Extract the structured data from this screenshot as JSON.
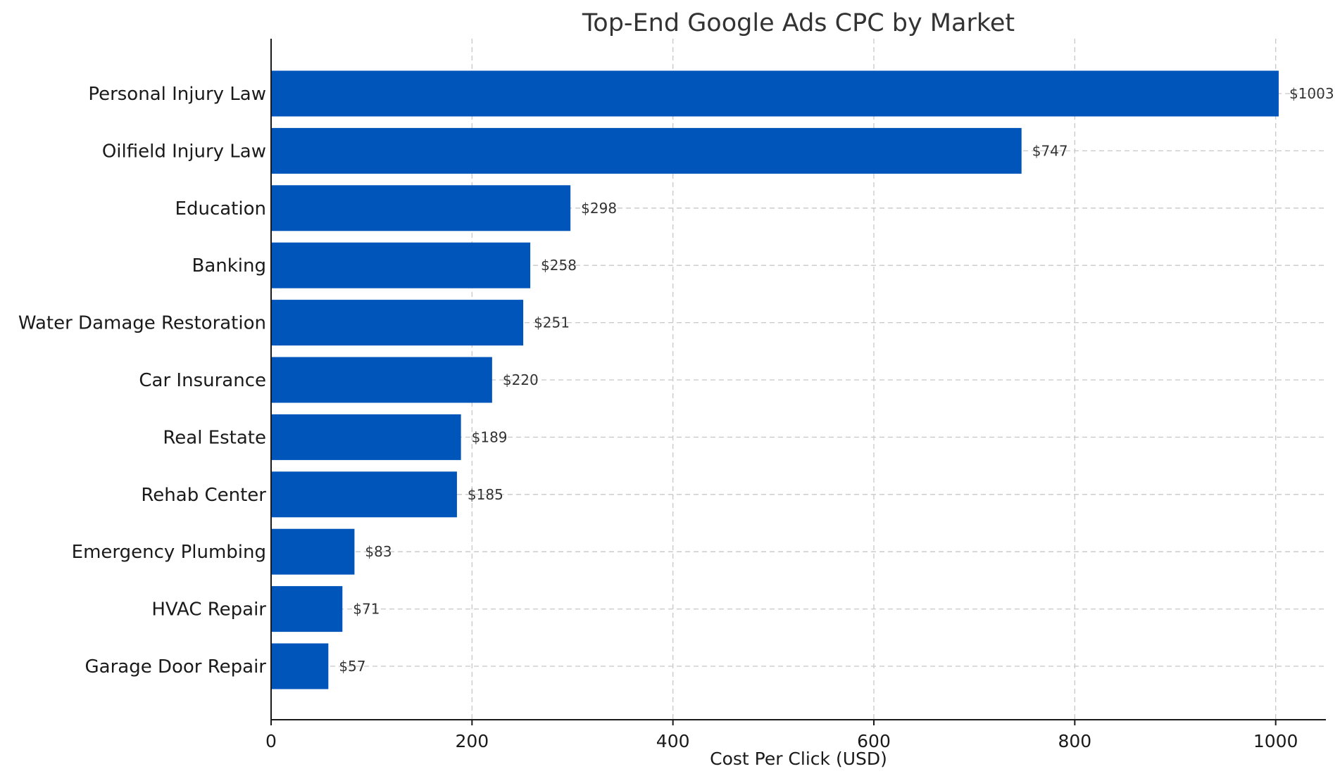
{
  "chart_data": {
    "type": "bar",
    "orientation": "horizontal",
    "title": "Top-End Google Ads CPC by Market",
    "xlabel": "Cost Per Click (USD)",
    "ylabel": "",
    "xlim": [
      0,
      1050
    ],
    "xticks": [
      0,
      200,
      400,
      600,
      800,
      1000
    ],
    "grid": true,
    "bar_color": "#0055BB",
    "categories": [
      "Personal Injury Law",
      "Oilfield Injury Law",
      "Education",
      "Banking",
      "Water Damage Restoration",
      "Car Insurance",
      "Real Estate",
      "Rehab Center",
      "Emergency Plumbing",
      "HVAC Repair",
      "Garage Door Repair"
    ],
    "values": [
      1003,
      747,
      298,
      258,
      251,
      220,
      189,
      185,
      83,
      71,
      57
    ],
    "data_labels": [
      "$1003",
      "$747",
      "$298",
      "$258",
      "$251",
      "$220",
      "$189",
      "$185",
      "$83",
      "$71",
      "$57"
    ]
  }
}
